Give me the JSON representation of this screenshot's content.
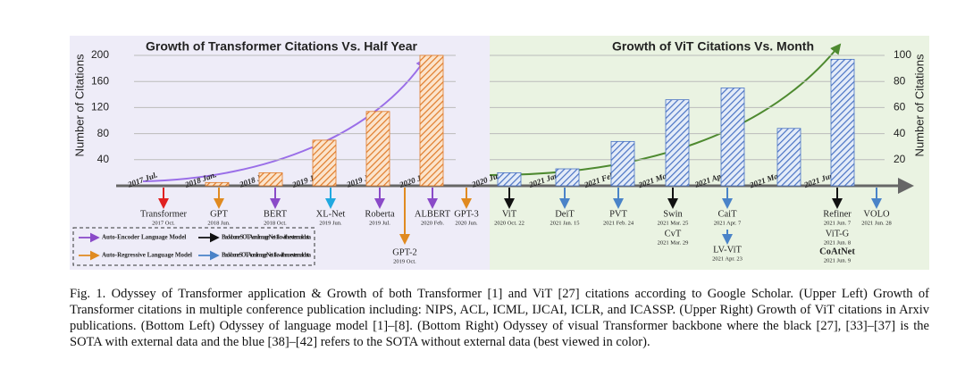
{
  "chart_data": [
    {
      "type": "bar",
      "title": "Growth of Transformer Citations Vs. Half Year",
      "y_label": "Number of Citations",
      "categories": [
        "2017 Jul.",
        "2018 Jan.",
        "2018 Jul.",
        "2019 Jan.",
        "2019 Jul.",
        "2020 Jan."
      ],
      "values": [
        null,
        5,
        20,
        70,
        114,
        200
      ],
      "color": "#e07b2a",
      "ylim": [
        0,
        200
      ],
      "yticks": [
        40,
        80,
        120,
        160,
        200
      ],
      "grid": true
    },
    {
      "type": "bar",
      "title": "Growth of ViT Citations Vs. Month",
      "y_label": "Number of Citations",
      "categories": [
        "2020 Jul.",
        "2021 Jan.",
        "2021 Feb.",
        "2021 Mar.",
        "2021 Apr.",
        "2021 May.",
        "2021 Jun."
      ],
      "values": [
        10,
        13,
        34,
        66,
        75,
        44,
        97
      ],
      "color": "#4a73c4",
      "ylim": [
        0,
        100
      ],
      "yticks": [
        20,
        40,
        60,
        80,
        100
      ],
      "grid": true
    }
  ],
  "events": [
    {
      "name": "Transformer",
      "date": "2017 Oct.",
      "color": "#e02020"
    },
    {
      "name": "GPT",
      "date": "2018 Jun.",
      "color": "#e08a20"
    },
    {
      "name": "BERT",
      "date": "2018 Oct.",
      "color": "#8a4ac8"
    },
    {
      "name": "XL-Net",
      "date": "2019 Jun.",
      "color": "#20a8e0"
    },
    {
      "name": "Roberta",
      "date": "2019 Jul.",
      "color": "#8a4ac8"
    },
    {
      "name": "GPT-2",
      "date": "2019 Oct.",
      "color": "#e08a20"
    },
    {
      "name": "ALBERT",
      "date": "2020 Feb.",
      "color": "#8a4ac8"
    },
    {
      "name": "GPT-3",
      "date": "2020 Jun.",
      "color": "#e08a20"
    },
    {
      "name": "ViT",
      "date": "2020 Oct. 22",
      "color": "#111111"
    },
    {
      "name": "DeiT",
      "date": "2021 Jan. 15",
      "color": "#4a83c8"
    },
    {
      "name": "PVT",
      "date": "2021 Feb. 24",
      "color": "#4a83c8"
    },
    {
      "name": "Swin",
      "date": "2021 Mar. 25",
      "color": "#111111"
    },
    {
      "name": "CvT",
      "date": "2021 Mar. 29",
      "color": "#111111"
    },
    {
      "name": "CaiT",
      "date": "2021 Apr. 7",
      "color": "#4a83c8"
    },
    {
      "name": "LV-ViT",
      "date": "2021 Apr. 23",
      "color": "#4a83c8"
    },
    {
      "name": "Refiner",
      "date": "2021 Jun. 7",
      "color": "#111111"
    },
    {
      "name": "ViT-G",
      "date": "2021 Jun. 8",
      "color": "#111111"
    },
    {
      "name": "CoAtNet",
      "date": "2021 Jun. 9",
      "color": "#e02020"
    },
    {
      "name": "VOLO",
      "date": "2021 Jun. 28",
      "color": "#4a83c8"
    }
  ],
  "legend": [
    {
      "label": "Auto-Encoder Language Model",
      "color": "#8a4ac8"
    },
    {
      "label": "Backbone SOTA on ImageNet-1k with external data",
      "color": "#111111"
    },
    {
      "label": "Auto-Regressive Language Model",
      "color": "#e08a20"
    },
    {
      "label": "Backbone SOTA on ImageNet-1k with no external data",
      "color": "#4a83c8"
    }
  ],
  "caption": "Fig. 1.  Odyssey of Transformer application & Growth of both Transformer [1] and ViT [27] citations according to Google Scholar. (Upper Left) Growth of Transformer citations in multiple conference publication including: NIPS, ACL, ICML, IJCAI, ICLR, and ICASSP. (Upper Right) Growth of ViT citations in Arxiv publications. (Bottom Left) Odyssey of language model [1]–[8]. (Bottom Right) Odyssey of visual Transformer backbone where the black [27], [33]–[37] is the SOTA with external data and the blue [38]–[42] refers to the SOTA without external data (best viewed in color)."
}
